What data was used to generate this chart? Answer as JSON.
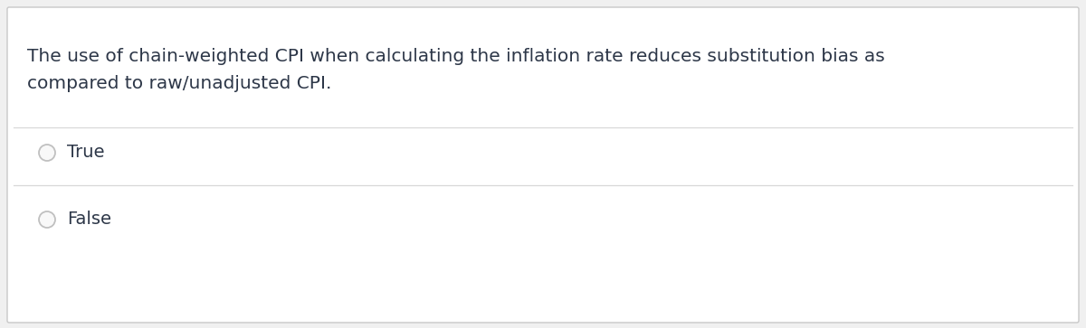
{
  "question_text_line1": "The use of chain-weighted CPI when calculating the inflation rate reduces substitution bias as",
  "question_text_line2": "compared to raw/unadjusted CPI.",
  "options": [
    "True",
    "False"
  ],
  "background_color": "#f0f0f0",
  "card_color": "#ffffff",
  "text_color": "#2d3748",
  "line_color": "#d8d8d8",
  "border_color": "#c8c8c8",
  "question_fontsize": 14.5,
  "option_fontsize": 14.0,
  "radio_color": "#c0c0c0",
  "radio_fill": "#f8f8f8"
}
